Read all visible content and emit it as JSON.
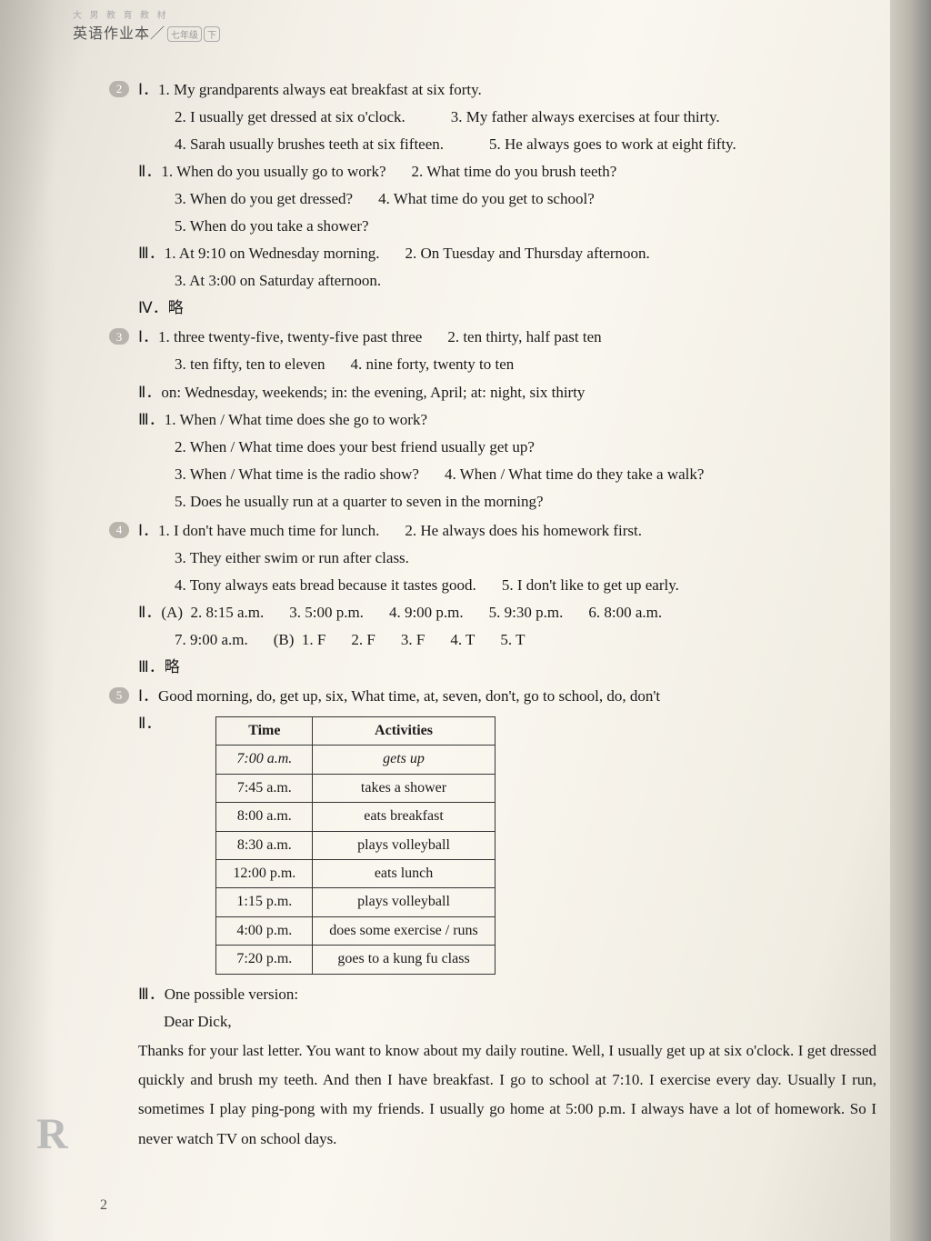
{
  "header": {
    "pub": "大 男 教 育 教 材",
    "title": "英语作业本／",
    "grade_a": "七年级",
    "grade_b": "下"
  },
  "s2": {
    "I": {
      "i1": "My grandparents always eat breakfast at six forty.",
      "i2": "I usually get dressed at six o'clock.",
      "i3": "My father always exercises at four thirty.",
      "i4": "Sarah usually brushes teeth at six fifteen.",
      "i5": "He always goes to work at eight fifty."
    },
    "II": {
      "i1": "When do you usually go to work?",
      "i2": "What time do you brush teeth?",
      "i3": "When do you get dressed?",
      "i4": "What time do you get to school?",
      "i5": "When do you take a shower?"
    },
    "III": {
      "i1": "At 9:10 on Wednesday morning.",
      "i2": "On Tuesday and Thursday afternoon.",
      "i3": "At 3:00 on Saturday afternoon."
    },
    "IV": "略"
  },
  "s3": {
    "I": {
      "i1": "three twenty-five, twenty-five past three",
      "i2": "ten thirty, half past ten",
      "i3": "ten fifty, ten to eleven",
      "i4": "nine forty, twenty to ten"
    },
    "II": "on: Wednesday, weekends; in: the evening, April; at: night, six thirty",
    "III": {
      "i1": "When / What time does she go to work?",
      "i2": "When / What time does your best friend usually get up?",
      "i3": "When / What time is the radio show?",
      "i4": "When / What time do they take a walk?",
      "i5": "Does he usually run at a quarter to seven in the morning?"
    }
  },
  "s4": {
    "I": {
      "i1": "I don't have much time for lunch.",
      "i2": "He always does his homework first.",
      "i3": "They either swim or run after class.",
      "i4": "Tony always eats bread because it tastes good.",
      "i5": "I don't like to get up early."
    },
    "II": {
      "A": {
        "a2": "8:15 a.m.",
        "a3": "5:00 p.m.",
        "a4": "9:00 p.m.",
        "a5": "9:30 p.m.",
        "a6": "8:00 a.m.",
        "a7": "9:00 a.m."
      },
      "B": {
        "b1": "F",
        "b2": "F",
        "b3": "F",
        "b4": "T",
        "b5": "T"
      }
    },
    "III": "略"
  },
  "s5": {
    "I": "Good morning, do, get up, six, What time, at, seven, don't, go to school, do, don't",
    "table": {
      "headers": [
        "Time",
        "Activities"
      ],
      "rows": [
        [
          "7:00 a.m.",
          "gets up"
        ],
        [
          "7:45 a.m.",
          "takes a shower"
        ],
        [
          "8:00 a.m.",
          "eats breakfast"
        ],
        [
          "8:30 a.m.",
          "plays volleyball"
        ],
        [
          "12:00 p.m.",
          "eats lunch"
        ],
        [
          "1:15 p.m.",
          "plays volleyball"
        ],
        [
          "4:00 p.m.",
          "does some exercise / runs"
        ],
        [
          "7:20 p.m.",
          "goes to a kung fu class"
        ]
      ]
    },
    "III": {
      "heading": "One possible version:",
      "salutation": "Dear Dick,",
      "body": "Thanks for your last letter. You want to know about my daily routine. Well, I usually get up at six o'clock. I get dressed quickly and brush my teeth. And then I have breakfast. I go to school at 7:10. I exercise every day. Usually I run, sometimes I play ping-pong with my friends. I usually go home at 5:00 p.m. I always have a lot of homework. So I never watch TV on school days."
    }
  },
  "pageNum": "2",
  "logoR": "R"
}
